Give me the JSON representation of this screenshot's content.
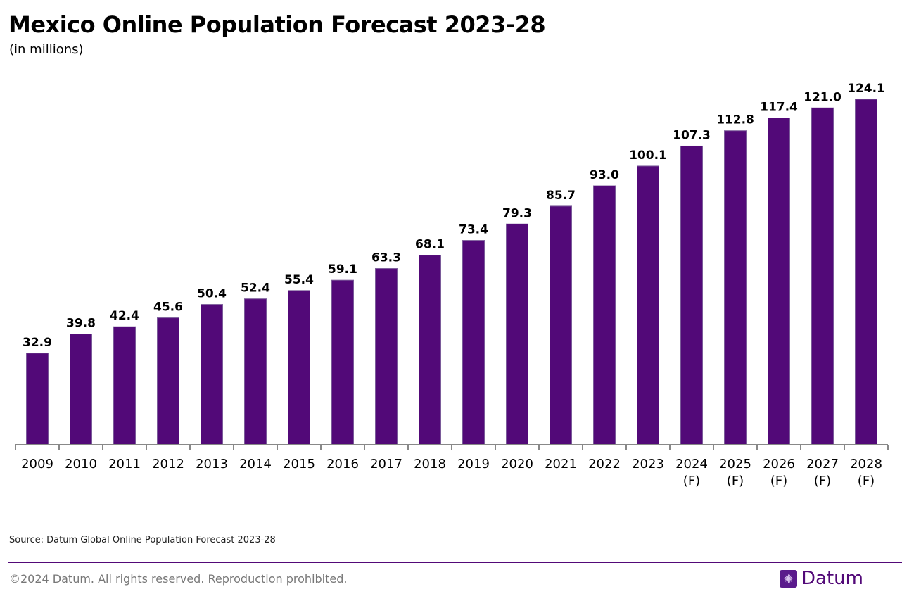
{
  "chart_data": {
    "type": "bar",
    "title": "Mexico Online Population Forecast 2023-28",
    "subtitle": "(in millions)",
    "categories": [
      "2009",
      "2010",
      "2011",
      "2012",
      "2013",
      "2014",
      "2015",
      "2016",
      "2017",
      "2018",
      "2019",
      "2020",
      "2021",
      "2022",
      "2023",
      "2024\n(F)",
      "2025\n(F)",
      "2026\n(F)",
      "2027\n(F)",
      "2028\n(F)"
    ],
    "values": [
      32.9,
      39.8,
      42.4,
      45.6,
      50.4,
      52.4,
      55.4,
      59.1,
      63.3,
      68.1,
      73.4,
      79.3,
      85.7,
      93.0,
      100.1,
      107.3,
      112.8,
      117.4,
      121.0,
      124.1
    ],
    "ylim": [
      0,
      124.1
    ],
    "grid": false,
    "data_labels": true,
    "bar_color": "#520978"
  },
  "footer": {
    "source": "Source: Datum Global Online Population Forecast 2023-28",
    "copyright": "©2024 Datum. All rights reserved. Reproduction prohibited.",
    "logo_text": "Datum"
  }
}
